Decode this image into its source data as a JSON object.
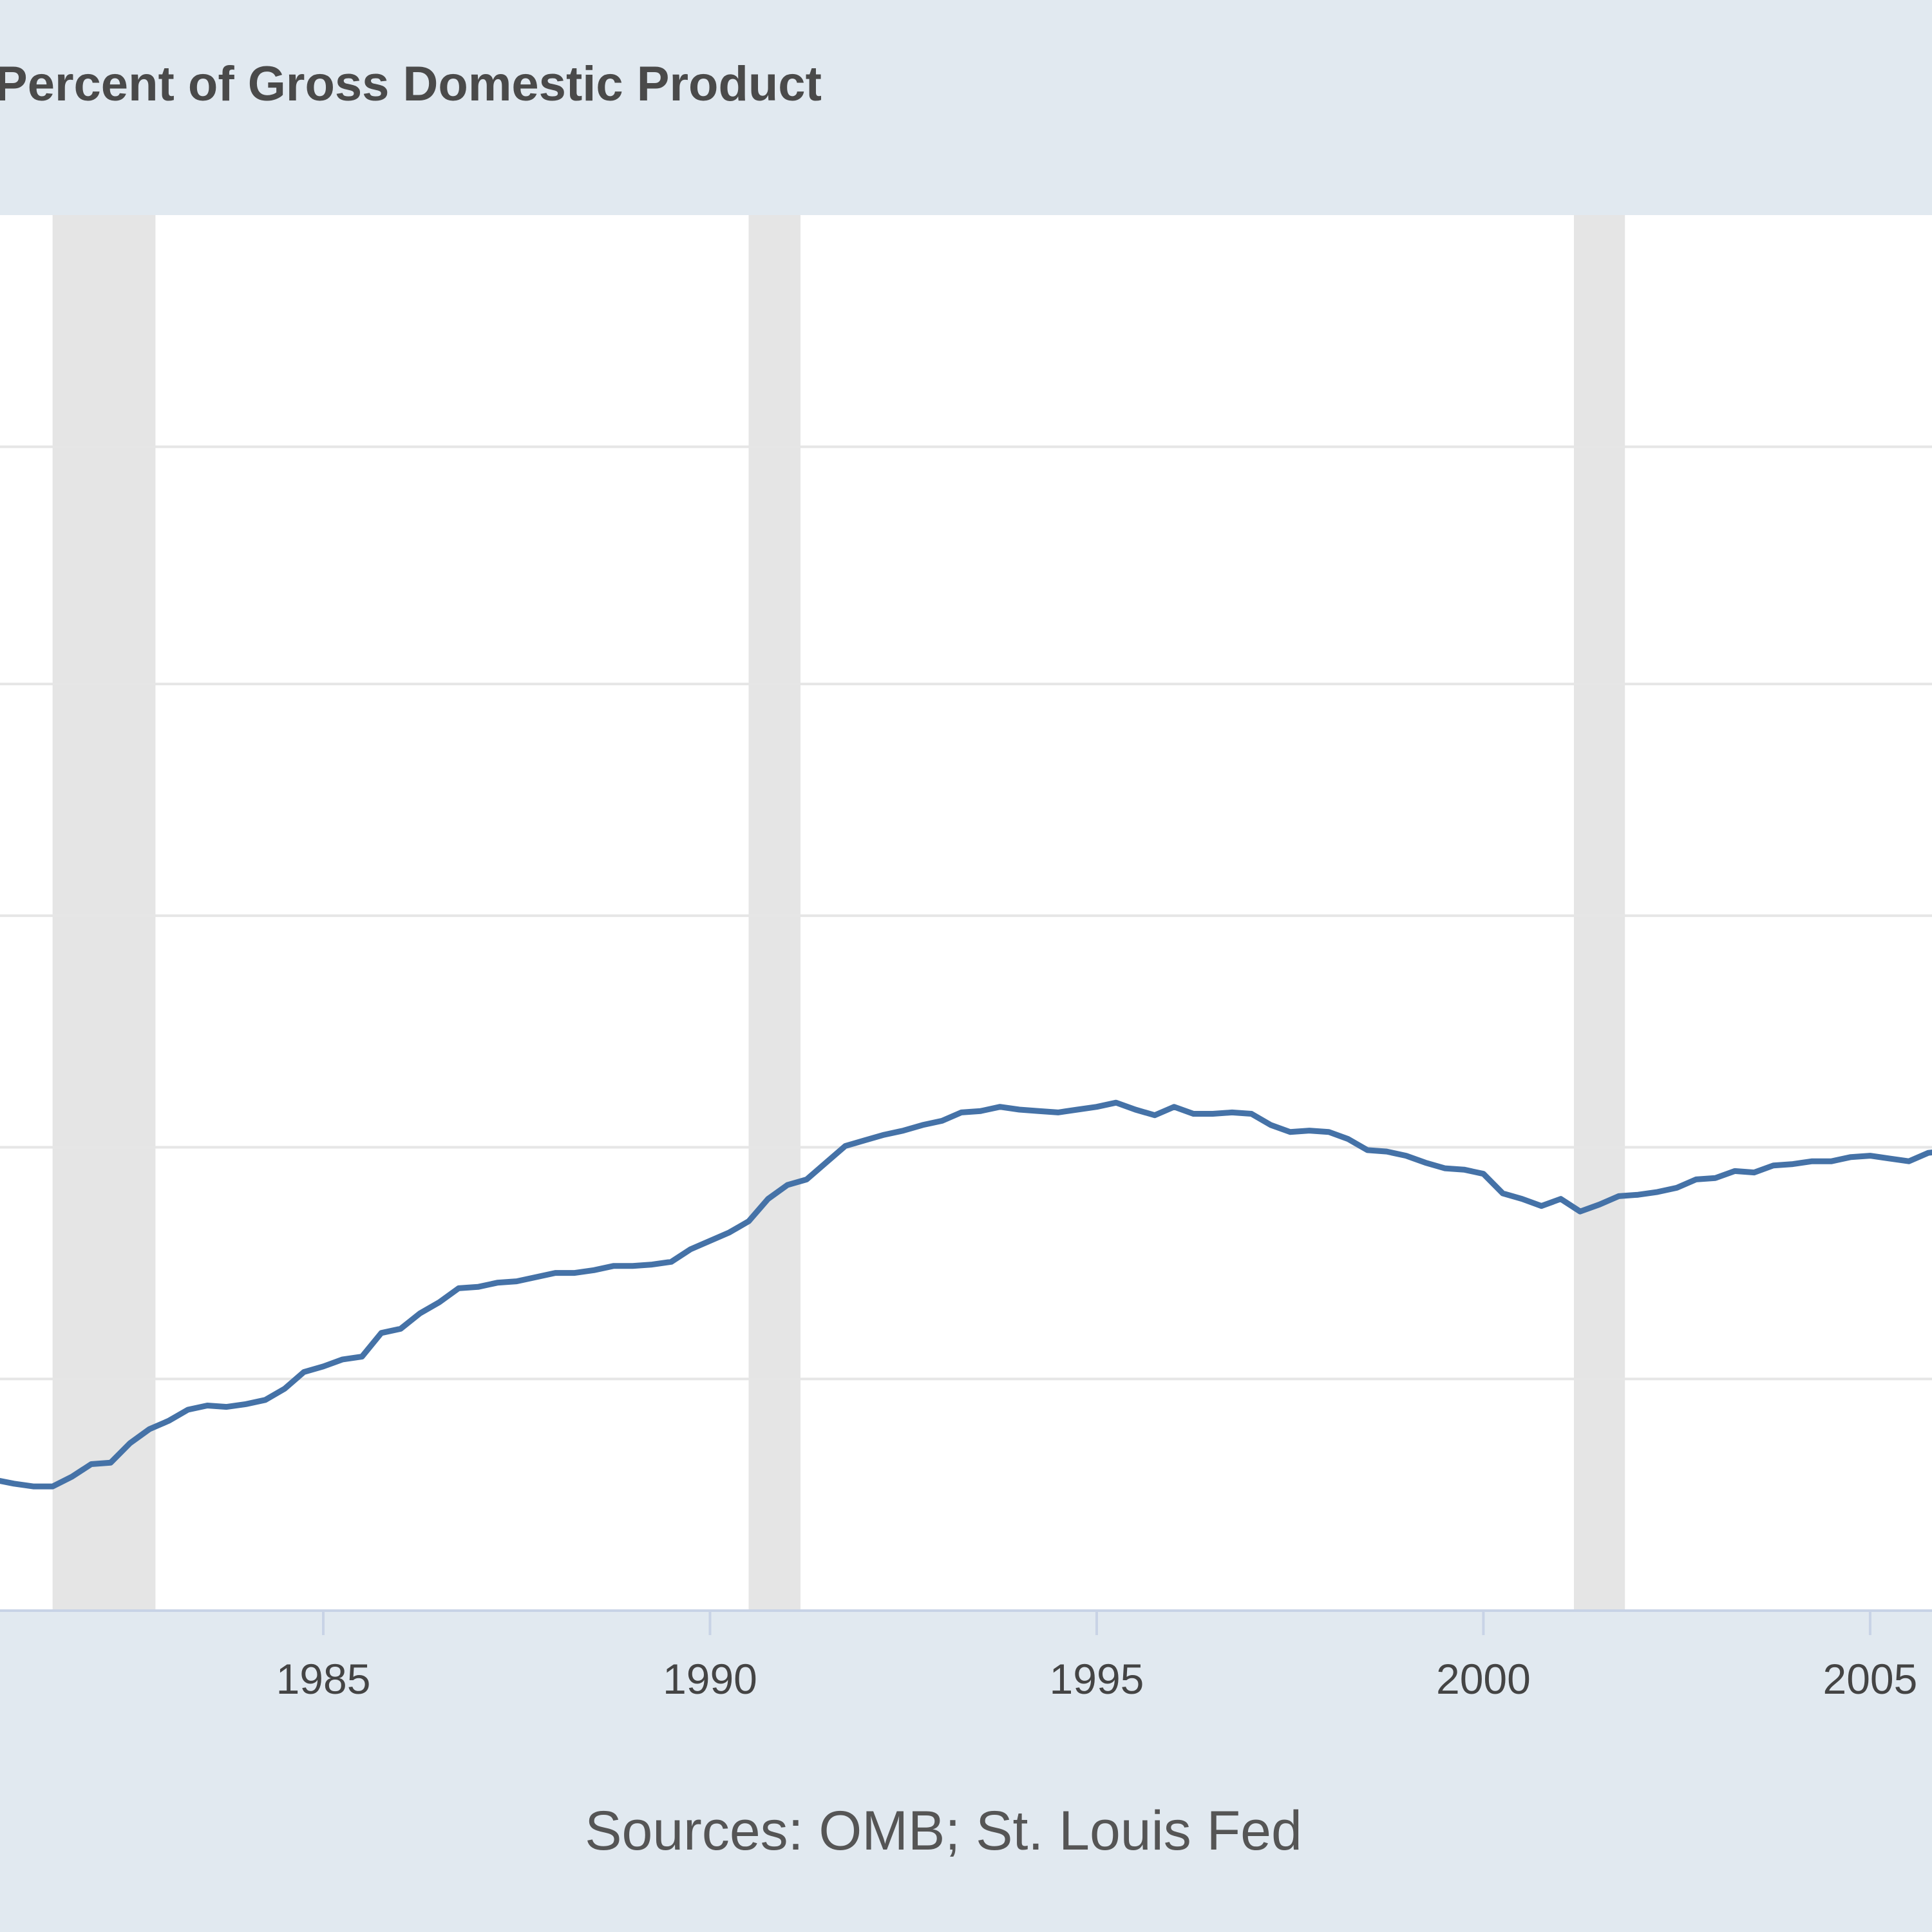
{
  "chart_data": {
    "type": "line",
    "units_label": "Percent of Gross Domestic Product",
    "source_note": "Sources: OMB; St. Louis Fed",
    "x_tick_labels": [
      "1985",
      "1990",
      "1995",
      "2000",
      "2005"
    ],
    "xlim": [
      1980.82,
      2005.8
    ],
    "ylim_relative_units": "unlabeled; values are relative plot-height units (0 = bottom of plot, 1 = top)",
    "ylim": [
      0,
      1
    ],
    "gridline_levels": [
      0.166,
      0.332,
      0.498,
      0.664,
      0.834
    ],
    "grid": true,
    "recessions": [
      {
        "start": 1981.5,
        "end": 1982.83
      },
      {
        "start": 1990.5,
        "end": 1991.17
      },
      {
        "start": 2001.17,
        "end": 2001.83
      }
    ],
    "colors": {
      "line": "#4572a7",
      "recession": "#e5e5e5",
      "grid": "#e6e6e6",
      "background": "#e1e9f0",
      "plot": "#ffffff"
    },
    "series": [
      {
        "x": [
          1980.82,
          1981.0,
          1981.25,
          1981.5,
          1981.75,
          1982.0,
          1982.25,
          1982.5,
          1982.75,
          1983.0,
          1983.25,
          1983.5,
          1983.75,
          1984.0,
          1984.25,
          1984.5,
          1984.75,
          1985.0,
          1985.25,
          1985.5,
          1985.75,
          1986.0,
          1986.25,
          1986.5,
          1986.75,
          1987.0,
          1987.25,
          1987.5,
          1987.75,
          1988.0,
          1988.25,
          1988.5,
          1988.75,
          1989.0,
          1989.25,
          1989.5,
          1989.75,
          1990.0,
          1990.25,
          1990.5,
          1990.75,
          1991.0,
          1991.25,
          1991.5,
          1991.75,
          1992.0,
          1992.25,
          1992.5,
          1992.75,
          1993.0,
          1993.25,
          1993.5,
          1993.75,
          1994.0,
          1994.25,
          1994.5,
          1994.75,
          1995.0,
          1995.25,
          1995.5,
          1995.75,
          1996.0,
          1996.25,
          1996.5,
          1996.75,
          1997.0,
          1997.25,
          1997.5,
          1997.75,
          1998.0,
          1998.25,
          1998.5,
          1998.75,
          1999.0,
          1999.25,
          1999.5,
          1999.75,
          2000.0,
          2000.25,
          2000.5,
          2000.75,
          2001.0,
          2001.25,
          2001.5,
          2001.75,
          2002.0,
          2002.25,
          2002.5,
          2002.75,
          2003.0,
          2003.25,
          2003.5,
          2003.75,
          2004.0,
          2004.25,
          2004.5,
          2004.75,
          2005.0,
          2005.25,
          2005.5,
          2005.75,
          2005.9
        ],
        "values": [
          0.093,
          0.091,
          0.089,
          0.089,
          0.096,
          0.105,
          0.106,
          0.12,
          0.13,
          0.136,
          0.144,
          0.147,
          0.146,
          0.148,
          0.151,
          0.159,
          0.171,
          0.175,
          0.18,
          0.182,
          0.199,
          0.202,
          0.213,
          0.221,
          0.231,
          0.232,
          0.235,
          0.236,
          0.239,
          0.242,
          0.242,
          0.244,
          0.247,
          0.247,
          0.248,
          0.25,
          0.259,
          0.265,
          0.271,
          0.279,
          0.295,
          0.305,
          0.309,
          0.321,
          0.333,
          0.337,
          0.341,
          0.344,
          0.348,
          0.351,
          0.357,
          0.358,
          0.361,
          0.359,
          0.358,
          0.357,
          0.359,
          0.361,
          0.364,
          0.359,
          0.355,
          0.361,
          0.356,
          0.356,
          0.357,
          0.356,
          0.348,
          0.343,
          0.344,
          0.343,
          0.338,
          0.33,
          0.329,
          0.326,
          0.321,
          0.317,
          0.316,
          0.313,
          0.299,
          0.295,
          0.29,
          0.295,
          0.286,
          0.291,
          0.297,
          0.298,
          0.3,
          0.303,
          0.309,
          0.31,
          0.315,
          0.314,
          0.319,
          0.32,
          0.322,
          0.322,
          0.325,
          0.326,
          0.324,
          0.322,
          0.328,
          0.329
        ]
      }
    ]
  }
}
